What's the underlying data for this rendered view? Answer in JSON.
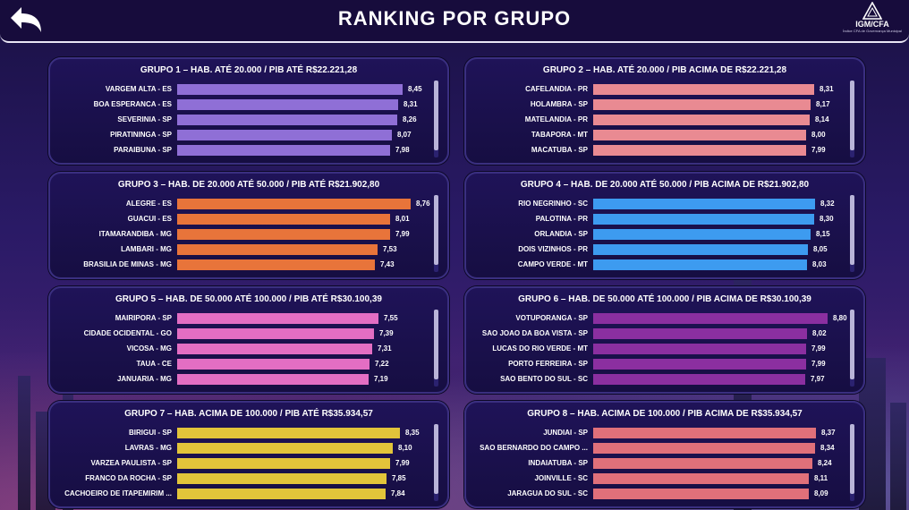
{
  "header": {
    "title": "RANKING POR GRUPO"
  },
  "logo": {
    "name": "IGM/CFA",
    "subtitle": "Índice CFA de Governança Municipal"
  },
  "groups": [
    {
      "title": "GRUPO 1 – HAB. ATÉ 20.000 / PIB ATÉ R$22.221,28",
      "color": "#8f6fd6",
      "rows": [
        {
          "label": "VARGEM ALTA - ES",
          "value": "8,45",
          "num": 8.45
        },
        {
          "label": "BOA ESPERANCA - ES",
          "value": "8,31",
          "num": 8.31
        },
        {
          "label": "SEVERINIA - SP",
          "value": "8,26",
          "num": 8.26
        },
        {
          "label": "PIRATININGA - SP",
          "value": "8,07",
          "num": 8.07
        },
        {
          "label": "PARAIBUNA - SP",
          "value": "7,98",
          "num": 7.98
        }
      ]
    },
    {
      "title": "GRUPO 2 – HAB. ATÉ 20.000 / PIB ACIMA DE R$22.221,28",
      "color": "#e98a92",
      "rows": [
        {
          "label": "CAFELANDIA - PR",
          "value": "8,31",
          "num": 8.31
        },
        {
          "label": "HOLAMBRA - SP",
          "value": "8,17",
          "num": 8.17
        },
        {
          "label": "MATELANDIA - PR",
          "value": "8,14",
          "num": 8.14
        },
        {
          "label": "TABAPORA - MT",
          "value": "8,00",
          "num": 8.0
        },
        {
          "label": "MACATUBA - SP",
          "value": "7,99",
          "num": 7.99
        }
      ]
    },
    {
      "title": "GRUPO 3 – HAB. DE 20.000 ATÉ 50.000 / PIB ATÉ R$21.902,80",
      "color": "#e8743a",
      "rows": [
        {
          "label": "ALEGRE - ES",
          "value": "8,76",
          "num": 8.76
        },
        {
          "label": "GUACUI - ES",
          "value": "8,01",
          "num": 8.01
        },
        {
          "label": "ITAMARANDIBA - MG",
          "value": "7,99",
          "num": 7.99
        },
        {
          "label": "LAMBARI - MG",
          "value": "7,53",
          "num": 7.53
        },
        {
          "label": "BRASILIA DE MINAS - MG",
          "value": "7,43",
          "num": 7.43
        }
      ]
    },
    {
      "title": "GRUPO 4 – HAB. DE 20.000 ATÉ 50.000 / PIB ACIMA DE R$21.902,80",
      "color": "#3d9bf0",
      "rows": [
        {
          "label": "RIO NEGRINHO - SC",
          "value": "8,32",
          "num": 8.32
        },
        {
          "label": "PALOTINA - PR",
          "value": "8,30",
          "num": 8.3
        },
        {
          "label": "ORLANDIA - SP",
          "value": "8,15",
          "num": 8.15
        },
        {
          "label": "DOIS VIZINHOS - PR",
          "value": "8,05",
          "num": 8.05
        },
        {
          "label": "CAMPO VERDE - MT",
          "value": "8,03",
          "num": 8.03
        }
      ]
    },
    {
      "title": "GRUPO 5 – HAB. DE 50.000 ATÉ 100.000 / PIB ATÉ R$30.100,39",
      "color": "#e36ec3",
      "rows": [
        {
          "label": "MAIRIPORA - SP",
          "value": "7,55",
          "num": 7.55
        },
        {
          "label": "CIDADE OCIDENTAL - GO",
          "value": "7,39",
          "num": 7.39
        },
        {
          "label": "VICOSA - MG",
          "value": "7,31",
          "num": 7.31
        },
        {
          "label": "TAUA - CE",
          "value": "7,22",
          "num": 7.22
        },
        {
          "label": "JANUARIA - MG",
          "value": "7,19",
          "num": 7.19
        }
      ]
    },
    {
      "title": "GRUPO 6 – HAB. DE 50.000 ATÉ 100.000 / PIB ACIMA DE R$30.100,39",
      "color": "#8b2fa0",
      "rows": [
        {
          "label": "VOTUPORANGA - SP",
          "value": "8,80",
          "num": 8.8
        },
        {
          "label": "SAO JOAO DA BOA VISTA - SP",
          "value": "8,02",
          "num": 8.02
        },
        {
          "label": "LUCAS DO RIO VERDE - MT",
          "value": "7,99",
          "num": 7.99
        },
        {
          "label": "PORTO FERREIRA - SP",
          "value": "7,99",
          "num": 7.99
        },
        {
          "label": "SAO BENTO DO SUL - SC",
          "value": "7,97",
          "num": 7.97
        }
      ]
    },
    {
      "title": "GRUPO 7 – HAB. ACIMA DE 100.000 / PIB ATÉ R$35.934,57",
      "color": "#e2c43a",
      "rows": [
        {
          "label": "BIRIGUI - SP",
          "value": "8,35",
          "num": 8.35
        },
        {
          "label": "LAVRAS - MG",
          "value": "8,10",
          "num": 8.1
        },
        {
          "label": "VARZEA PAULISTA - SP",
          "value": "7,99",
          "num": 7.99
        },
        {
          "label": "FRANCO DA ROCHA - SP",
          "value": "7,85",
          "num": 7.85
        },
        {
          "label": "CACHOEIRO DE ITAPEMIRIM ...",
          "value": "7,84",
          "num": 7.84
        }
      ]
    },
    {
      "title": "GRUPO 8 – HAB. ACIMA DE 100.000 / PIB ACIMA DE R$35.934,57",
      "color": "#e0707a",
      "rows": [
        {
          "label": "JUNDIAI - SP",
          "value": "8,37",
          "num": 8.37
        },
        {
          "label": "SAO BERNARDO DO CAMPO ...",
          "value": "8,34",
          "num": 8.34
        },
        {
          "label": "INDAIATUBA - SP",
          "value": "8,24",
          "num": 8.24
        },
        {
          "label": "JOINVILLE - SC",
          "value": "8,11",
          "num": 8.11
        },
        {
          "label": "JARAGUA DO SUL - SC",
          "value": "8,09",
          "num": 8.09
        }
      ]
    }
  ]
}
